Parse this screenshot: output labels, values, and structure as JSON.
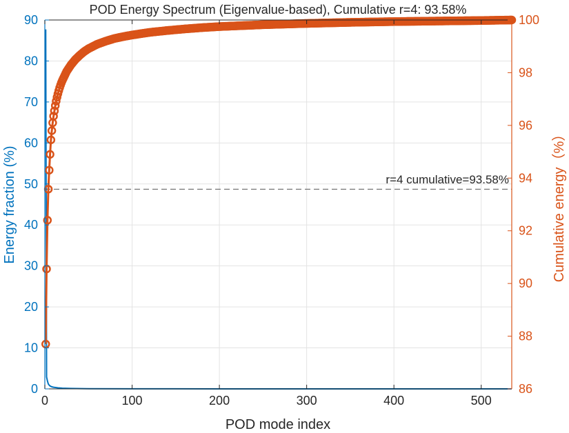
{
  "chart_data": {
    "type": "line",
    "title": "POD Energy Spectrum (Eigenvalue-based), Cumulative r=4: 93.58%",
    "xlabel": "POD mode index",
    "ylabel_left": "Energy fraction (%)",
    "ylabel_right": "Cumulative energy（%）",
    "xlim": [
      0,
      535
    ],
    "ylim_left": [
      0,
      90
    ],
    "ylim_right": [
      86,
      100
    ],
    "xticks": [
      0,
      100,
      200,
      300,
      400,
      500
    ],
    "yticks_left": [
      0,
      10,
      20,
      30,
      40,
      50,
      60,
      70,
      80,
      90
    ],
    "yticks_right": [
      86,
      88,
      90,
      92,
      94,
      96,
      98,
      100
    ],
    "grid": true,
    "colors": {
      "left_axis": "#0072BD",
      "right_axis": "#D95319",
      "reference_line": "#555555"
    },
    "series": [
      {
        "axis": "left",
        "marker": "none",
        "color": "#0072BD",
        "x": [
          1,
          2,
          3,
          4,
          5,
          6,
          7,
          8,
          10,
          15,
          20,
          30,
          50,
          100,
          200,
          300,
          400,
          535
        ],
        "y": [
          87.7,
          2.9,
          1.9,
          1.2,
          0.9,
          0.7,
          0.6,
          0.5,
          0.4,
          0.25,
          0.17,
          0.1,
          0.05,
          0.02,
          0.01,
          0.004,
          0.002,
          0.001
        ]
      },
      {
        "axis": "right",
        "marker": "circle",
        "color": "#D95319",
        "x": [
          1,
          2,
          3,
          4,
          5,
          6,
          7,
          8,
          9,
          10,
          11,
          12,
          13,
          14,
          15,
          16,
          17,
          18,
          19,
          20,
          25,
          30,
          35,
          40,
          45,
          50,
          60,
          70,
          80,
          90,
          100,
          120,
          140,
          160,
          180,
          200,
          250,
          300,
          350,
          400,
          450,
          500,
          535
        ],
        "y": [
          87.7,
          90.55,
          92.4,
          93.58,
          94.3,
          94.9,
          95.45,
          95.8,
          96.1,
          96.35,
          96.55,
          96.75,
          96.92,
          97.07,
          97.2,
          97.32,
          97.43,
          97.53,
          97.62,
          97.7,
          98.05,
          98.3,
          98.5,
          98.66,
          98.8,
          98.91,
          99.08,
          99.2,
          99.3,
          99.37,
          99.43,
          99.53,
          99.6,
          99.66,
          99.71,
          99.75,
          99.82,
          99.87,
          99.91,
          99.94,
          99.96,
          99.98,
          100
        ]
      }
    ],
    "reference_line": {
      "axis": "right",
      "y": 93.58,
      "style": "dashed",
      "label": "r=4 cumulative=93.58%"
    }
  }
}
